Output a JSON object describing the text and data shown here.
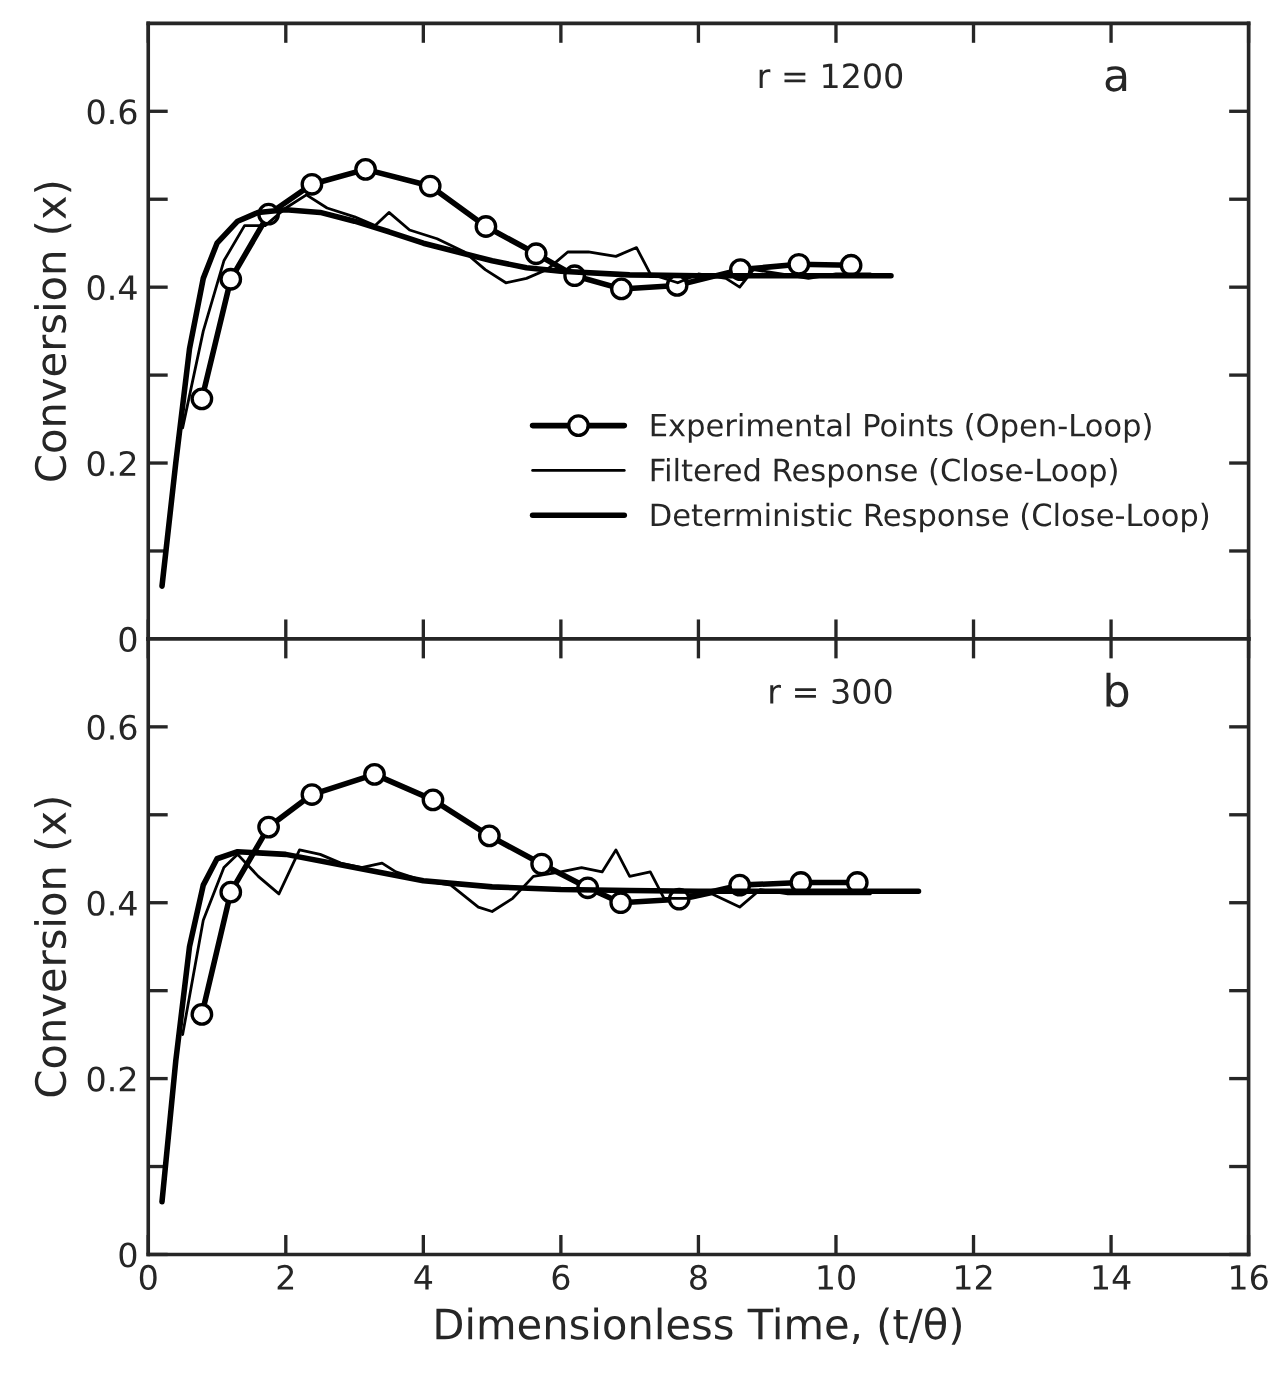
{
  "chart_data": [
    {
      "type": "line",
      "ylabel": "Conversion (x)",
      "annotations": [
        "r = 1200",
        "a"
      ],
      "xlim": [
        0,
        16
      ],
      "xticks": [
        0,
        2,
        4,
        6,
        8,
        10,
        12,
        14,
        16
      ],
      "ylim": [
        0,
        0.7
      ],
      "yticks": [
        0,
        {
          "value": 0.1,
          "label": null
        },
        0.2,
        {
          "value": 0.3,
          "label": null
        },
        0.4,
        {
          "value": 0.5,
          "label": null
        },
        0.6
      ],
      "tick_labels": "y",
      "legend": "right",
      "grid": false,
      "series": [
        {
          "name": "Experimental Points (Open-Loop)",
          "color": "#000000",
          "marker": "circle",
          "x": [
            0.78,
            1.2,
            1.75,
            2.38,
            3.16,
            4.1,
            4.91,
            5.64,
            6.2,
            6.88,
            7.69,
            8.61,
            9.46,
            10.22
          ],
          "values": [
            0.273,
            0.409,
            0.483,
            0.517,
            0.534,
            0.515,
            0.469,
            0.438,
            0.413,
            0.398,
            0.402,
            0.42,
            0.426,
            0.425
          ]
        },
        {
          "name": "Filtered Response (Close-Loop)",
          "color": "#000000",
          "x": [
            0.5,
            0.8,
            1.1,
            1.4,
            1.7,
            2.0,
            2.3,
            2.6,
            3.0,
            3.3,
            3.5,
            3.8,
            4.2,
            4.6,
            4.9,
            5.2,
            5.5,
            5.8,
            6.1,
            6.4,
            6.8,
            7.1,
            7.3,
            7.7,
            8.0,
            8.4,
            8.6,
            8.8,
            9.2,
            9.6,
            10.0,
            10.5
          ],
          "values": [
            0.24,
            0.35,
            0.43,
            0.47,
            0.47,
            0.49,
            0.505,
            0.49,
            0.48,
            0.47,
            0.485,
            0.465,
            0.455,
            0.44,
            0.42,
            0.405,
            0.41,
            0.42,
            0.44,
            0.44,
            0.435,
            0.445,
            0.415,
            0.405,
            0.415,
            0.41,
            0.4,
            0.42,
            0.415,
            0.41,
            0.415,
            0.415
          ]
        },
        {
          "name": "Deterministic Response (Close-Loop)",
          "color": "#000000",
          "x": [
            0.2,
            0.4,
            0.6,
            0.8,
            1.0,
            1.3,
            1.6,
            2.0,
            2.5,
            3.0,
            3.5,
            4.0,
            4.5,
            5.0,
            5.5,
            6.0,
            7.0,
            8.0,
            9.0,
            10.0,
            10.8
          ],
          "values": [
            0.06,
            0.2,
            0.33,
            0.41,
            0.45,
            0.475,
            0.485,
            0.488,
            0.485,
            0.475,
            0.463,
            0.45,
            0.44,
            0.43,
            0.422,
            0.418,
            0.414,
            0.413,
            0.413,
            0.413,
            0.413
          ]
        }
      ]
    },
    {
      "type": "line",
      "xlabel": "Dimensionless Time, (t/θ)",
      "ylabel": "Conversion (x)",
      "annotations": [
        "r = 300",
        "b"
      ],
      "xlim": [
        0,
        16
      ],
      "xticks": [
        0,
        2,
        4,
        6,
        8,
        10,
        12,
        14,
        16
      ],
      "ylim": [
        0,
        0.7
      ],
      "yticks": [
        0,
        {
          "value": 0.1,
          "label": null
        },
        0.2,
        {
          "value": 0.3,
          "label": null
        },
        0.4,
        {
          "value": 0.5,
          "label": null
        },
        0.6
      ],
      "grid": false,
      "series": [
        {
          "color": "#000000",
          "marker": "circle",
          "x": [
            0.78,
            1.2,
            1.75,
            2.38,
            3.29,
            4.14,
            4.96,
            5.72,
            6.39,
            6.87,
            7.72,
            8.6,
            9.49,
            10.31
          ],
          "values": [
            0.273,
            0.412,
            0.486,
            0.523,
            0.546,
            0.517,
            0.476,
            0.444,
            0.417,
            0.4,
            0.404,
            0.42,
            0.423,
            0.423
          ]
        },
        {
          "color": "#000000",
          "x": [
            0.5,
            0.8,
            1.1,
            1.3,
            1.6,
            1.9,
            2.2,
            2.5,
            2.8,
            3.1,
            3.4,
            3.6,
            4.0,
            4.4,
            4.8,
            5.0,
            5.3,
            5.6,
            6.0,
            6.3,
            6.6,
            6.8,
            7.0,
            7.3,
            7.5,
            7.9,
            8.2,
            8.6,
            8.9,
            9.3,
            9.6,
            10.0,
            10.5
          ],
          "values": [
            0.25,
            0.38,
            0.44,
            0.455,
            0.43,
            0.41,
            0.46,
            0.455,
            0.445,
            0.44,
            0.445,
            0.435,
            0.425,
            0.42,
            0.395,
            0.39,
            0.405,
            0.43,
            0.435,
            0.44,
            0.435,
            0.46,
            0.43,
            0.435,
            0.405,
            0.405,
            0.41,
            0.395,
            0.415,
            0.41,
            0.41,
            0.41,
            0.41
          ]
        },
        {
          "color": "#000000",
          "x": [
            0.2,
            0.4,
            0.6,
            0.8,
            1.0,
            1.3,
            2.0,
            3.0,
            4.0,
            5.0,
            6.0,
            7.0,
            8.0,
            9.0,
            10.0,
            11.2
          ],
          "values": [
            0.06,
            0.22,
            0.35,
            0.42,
            0.45,
            0.458,
            0.455,
            0.44,
            0.425,
            0.418,
            0.415,
            0.414,
            0.413,
            0.413,
            0.413,
            0.413
          ]
        }
      ]
    }
  ]
}
